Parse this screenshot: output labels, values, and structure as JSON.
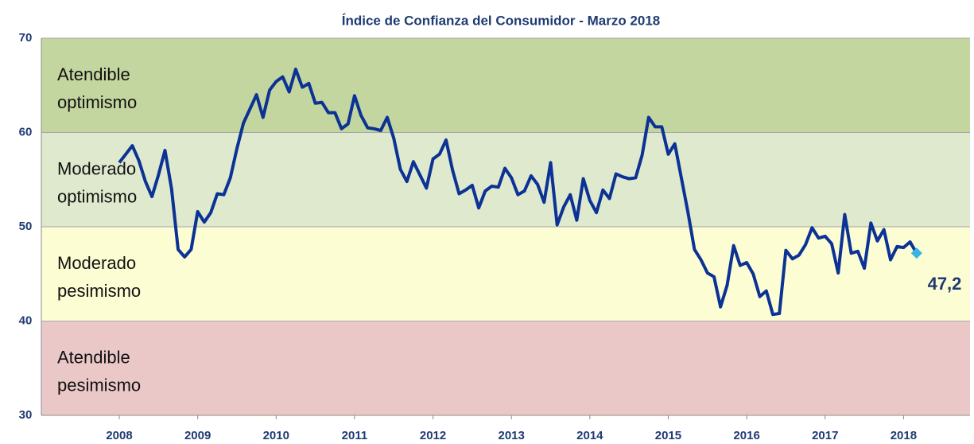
{
  "chart_data": {
    "type": "line",
    "title": "Índice de Confianza del Consumidor - Marzo 2018",
    "categories": [
      "2008",
      null,
      null,
      null,
      null,
      null,
      null,
      null,
      null,
      null,
      null,
      null,
      "2009",
      null,
      null,
      null,
      null,
      null,
      null,
      null,
      null,
      null,
      null,
      null,
      "2010",
      null,
      null,
      null,
      null,
      null,
      null,
      null,
      null,
      null,
      null,
      null,
      "2011",
      null,
      null,
      null,
      null,
      null,
      null,
      null,
      null,
      null,
      null,
      null,
      "2012",
      null,
      null,
      null,
      null,
      null,
      null,
      null,
      null,
      null,
      null,
      null,
      "2013",
      null,
      null,
      null,
      null,
      null,
      null,
      null,
      null,
      null,
      null,
      null,
      "2014",
      null,
      null,
      null,
      null,
      null,
      null,
      null,
      null,
      null,
      null,
      null,
      "2015",
      null,
      null,
      null,
      null,
      null,
      null,
      null,
      null,
      null,
      null,
      null,
      "2016",
      null,
      null,
      null,
      null,
      null,
      null,
      null,
      null,
      null,
      null,
      null,
      "2017",
      null,
      null,
      null,
      null,
      null,
      null,
      null,
      null,
      null,
      null,
      null,
      "2018",
      null,
      null
    ],
    "values": [
      56.8,
      57.7,
      58.6,
      57.0,
      54.8,
      53.2,
      55.5,
      58.1,
      54.0,
      47.6,
      46.8,
      47.6,
      51.6,
      50.5,
      51.5,
      53.5,
      53.4,
      55.2,
      58.3,
      61.0,
      62.5,
      64.0,
      61.6,
      64.5,
      65.4,
      65.9,
      64.3,
      66.7,
      64.8,
      65.2,
      63.1,
      63.2,
      62.1,
      62.1,
      60.4,
      60.9,
      63.9,
      61.8,
      60.5,
      60.4,
      60.2,
      61.6,
      59.4,
      56.1,
      54.8,
      56.9,
      55.5,
      54.1,
      57.2,
      57.7,
      59.2,
      56.0,
      53.5,
      53.9,
      54.4,
      52.0,
      53.8,
      54.3,
      54.2,
      56.2,
      55.2,
      53.4,
      53.8,
      55.4,
      54.5,
      52.6,
      56.8,
      50.2,
      52.1,
      53.4,
      50.7,
      55.1,
      52.8,
      51.5,
      53.9,
      53.0,
      55.6,
      55.3,
      55.1,
      55.2,
      57.6,
      61.6,
      60.6,
      60.6,
      57.7,
      58.8,
      55.2,
      51.6,
      47.6,
      46.5,
      45.1,
      44.7,
      41.5,
      43.8,
      48.0,
      45.9,
      46.2,
      45.0,
      42.6,
      43.2,
      40.7,
      40.8,
      47.5,
      46.6,
      47.0,
      48.1,
      49.9,
      48.8,
      49.0,
      48.2,
      45.1,
      51.3,
      47.2,
      47.4,
      45.6,
      50.4,
      48.5,
      49.7,
      46.5,
      47.9,
      47.8,
      48.4,
      47.2
    ],
    "value_labels": [
      null,
      null,
      null,
      null,
      null,
      null,
      null,
      null,
      null,
      null,
      null,
      null,
      null,
      null,
      null,
      null,
      null,
      null,
      null,
      null,
      null,
      null,
      null,
      null,
      null,
      null,
      null,
      null,
      null,
      null,
      null,
      null,
      null,
      null,
      null,
      null,
      null,
      null,
      null,
      null,
      null,
      null,
      null,
      null,
      null,
      null,
      null,
      null,
      null,
      null,
      null,
      null,
      null,
      null,
      null,
      null,
      null,
      null,
      null,
      null,
      null,
      null,
      null,
      null,
      null,
      null,
      null,
      null,
      null,
      null,
      null,
      null,
      null,
      null,
      null,
      null,
      null,
      null,
      null,
      null,
      null,
      null,
      null,
      null,
      null,
      null,
      null,
      null,
      null,
      null,
      null,
      null,
      null,
      null,
      null,
      null,
      null,
      null,
      null,
      null,
      null,
      null,
      null,
      null,
      null,
      null,
      null,
      null,
      null,
      null,
      null,
      null,
      null,
      null,
      null,
      null,
      null,
      null,
      null,
      null,
      null,
      null,
      "47,2"
    ],
    "color": "#0b3294",
    "marker_color": "#33b5e5",
    "ylim": [
      30,
      70
    ],
    "yticks": [
      30,
      40,
      50,
      60,
      70
    ],
    "grid": true,
    "bands": [
      {
        "from": 60,
        "to": 70,
        "color": "#c4d69f",
        "label": [
          "Atendible",
          "optimismo"
        ]
      },
      {
        "from": 50,
        "to": 60,
        "color": "#dfe9ce",
        "label": [
          "Moderado",
          "optimismo"
        ]
      },
      {
        "from": 40,
        "to": 50,
        "color": "#fdfdd3",
        "label": [
          "Moderado",
          "pesimismo"
        ]
      },
      {
        "from": 30,
        "to": 40,
        "color": "#ebc8c8",
        "label": [
          "Atendible",
          "pesimismo"
        ]
      }
    ]
  }
}
